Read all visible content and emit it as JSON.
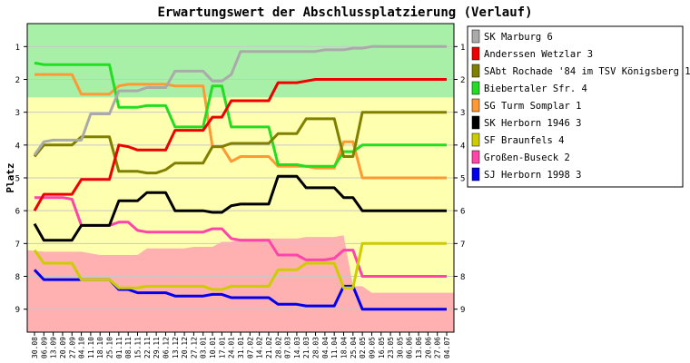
{
  "chart_data": {
    "type": "line",
    "title": "Erwartungswert der Abschlussplatzierung (Verlauf)",
    "ylabel": "Platz",
    "xlabel": "",
    "ylim": [
      0.3,
      9.7
    ],
    "y_ticks": [
      1,
      2,
      3,
      4,
      5,
      6,
      7,
      8,
      9
    ],
    "y_inverted": true,
    "grid": true,
    "legend_position": "right",
    "x": [
      "30.08",
      "06.09",
      "13.09",
      "20.09",
      "27.09",
      "04.10",
      "11.10",
      "18.10",
      "25.10",
      "01.11",
      "08.11",
      "15.11",
      "22.11",
      "29.11",
      "06.12",
      "13.12",
      "20.12",
      "27.12",
      "03.01",
      "10.01",
      "17.01",
      "24.01",
      "31.01",
      "07.02",
      "14.02",
      "21.02",
      "28.02",
      "07.03",
      "14.03",
      "21.03",
      "28.03",
      "04.04",
      "11.04",
      "18.04",
      "25.04",
      "02.05",
      "09.05",
      "16.05",
      "23.05",
      "30.05",
      "06.06",
      "13.06",
      "20.06",
      "27.06",
      "04.07"
    ],
    "bands": [
      {
        "name": "promotion",
        "color": "#a8f0a8",
        "lower": [
          2.55,
          2.55,
          2.55,
          2.55,
          2.55,
          2.55,
          2.55,
          2.55,
          2.55,
          2.55,
          2.55,
          2.55,
          2.55,
          2.55,
          2.55,
          2.55,
          2.55,
          2.55,
          2.55,
          2.55,
          2.55,
          2.55,
          2.55,
          2.55,
          2.55,
          2.55,
          2.55,
          2.55,
          2.55,
          2.55,
          2.55,
          2.55,
          2.55,
          2.55,
          2.55,
          2.55,
          2.55,
          2.55,
          2.55,
          2.55,
          2.55,
          2.55,
          2.55,
          2.55,
          2.55
        ]
      },
      {
        "name": "relegation",
        "color": "#ffb0b0",
        "upper": [
          7.2,
          7.25,
          7.25,
          7.25,
          7.25,
          7.25,
          7.3,
          7.35,
          7.35,
          7.35,
          7.35,
          7.35,
          7.15,
          7.15,
          7.15,
          7.15,
          7.15,
          7.1,
          7.1,
          7.1,
          6.95,
          6.95,
          6.85,
          6.85,
          6.85,
          6.85,
          6.85,
          6.85,
          6.85,
          6.8,
          6.8,
          6.8,
          6.8,
          6.75,
          8.3,
          8.3,
          8.5,
          8.5,
          8.5,
          8.5,
          8.5,
          8.5,
          8.5,
          8.5,
          8.5
        ]
      }
    ],
    "series": [
      {
        "name": "SK Marburg 6",
        "color": "#aaaaaa",
        "values": [
          4.3,
          3.9,
          3.85,
          3.85,
          3.85,
          3.85,
          3.05,
          3.05,
          3.05,
          2.35,
          2.35,
          2.35,
          2.25,
          2.25,
          2.25,
          1.75,
          1.75,
          1.75,
          1.75,
          2.05,
          2.05,
          1.85,
          1.15,
          1.15,
          1.15,
          1.15,
          1.15,
          1.15,
          1.15,
          1.15,
          1.15,
          1.1,
          1.1,
          1.1,
          1.05,
          1.05,
          1.0,
          1.0,
          1.0,
          1.0,
          1.0,
          1.0,
          1.0,
          1.0,
          1.0
        ]
      },
      {
        "name": "Anderssen Wetzlar 3",
        "color": "#ee0000",
        "values": [
          6.0,
          5.5,
          5.5,
          5.5,
          5.5,
          5.05,
          5.05,
          5.05,
          5.05,
          4.0,
          4.05,
          4.15,
          4.15,
          4.15,
          4.15,
          3.55,
          3.55,
          3.55,
          3.55,
          3.15,
          3.15,
          2.65,
          2.65,
          2.65,
          2.65,
          2.65,
          2.1,
          2.1,
          2.1,
          2.05,
          2.0,
          2.0,
          2.0,
          2.0,
          2.0,
          2.0,
          2.0,
          2.0,
          2.0,
          2.0,
          2.0,
          2.0,
          2.0,
          2.0,
          2.0
        ]
      },
      {
        "name": "SAbt Rochade '84 im TSV Königsberg 1",
        "color": "#808000",
        "values": [
          4.35,
          4.0,
          4.0,
          4.0,
          4.0,
          3.75,
          3.75,
          3.75,
          3.75,
          4.8,
          4.8,
          4.8,
          4.85,
          4.85,
          4.75,
          4.55,
          4.55,
          4.55,
          4.55,
          4.05,
          4.05,
          3.95,
          3.95,
          3.95,
          3.95,
          3.95,
          3.65,
          3.65,
          3.65,
          3.2,
          3.2,
          3.2,
          3.2,
          4.35,
          4.35,
          3.0,
          3.0,
          3.0,
          3.0,
          3.0,
          3.0,
          3.0,
          3.0,
          3.0,
          3.0
        ]
      },
      {
        "name": "Biebertaler Sfr. 4",
        "color": "#22dd22",
        "values": [
          1.5,
          1.55,
          1.55,
          1.55,
          1.55,
          1.55,
          1.55,
          1.55,
          1.55,
          2.85,
          2.85,
          2.85,
          2.8,
          2.8,
          2.8,
          3.45,
          3.45,
          3.45,
          3.45,
          2.2,
          2.2,
          3.45,
          3.45,
          3.45,
          3.45,
          3.45,
          4.6,
          4.6,
          4.6,
          4.65,
          4.65,
          4.65,
          4.65,
          4.2,
          4.2,
          4.0,
          4.0,
          4.0,
          4.0,
          4.0,
          4.0,
          4.0,
          4.0,
          4.0,
          4.0
        ]
      },
      {
        "name": "SG Turm Somplar 1",
        "color": "#ff9933",
        "values": [
          1.85,
          1.85,
          1.85,
          1.85,
          1.85,
          2.45,
          2.45,
          2.45,
          2.45,
          2.2,
          2.15,
          2.15,
          2.15,
          2.15,
          2.15,
          2.2,
          2.2,
          2.2,
          2.2,
          4.05,
          4.05,
          4.5,
          4.35,
          4.35,
          4.35,
          4.35,
          4.65,
          4.65,
          4.65,
          4.65,
          4.7,
          4.7,
          4.7,
          3.9,
          3.9,
          5.0,
          5.0,
          5.0,
          5.0,
          5.0,
          5.0,
          5.0,
          5.0,
          5.0,
          5.0
        ]
      },
      {
        "name": "SK Herborn 1946 3",
        "color": "#000000",
        "values": [
          6.4,
          6.9,
          6.9,
          6.9,
          6.9,
          6.45,
          6.45,
          6.45,
          6.45,
          5.7,
          5.7,
          5.7,
          5.45,
          5.45,
          5.45,
          6.0,
          6.0,
          6.0,
          6.0,
          6.05,
          6.05,
          5.85,
          5.8,
          5.8,
          5.8,
          5.8,
          4.95,
          4.95,
          4.95,
          5.3,
          5.3,
          5.3,
          5.3,
          5.6,
          5.6,
          6.0,
          6.0,
          6.0,
          6.0,
          6.0,
          6.0,
          6.0,
          6.0,
          6.0,
          6.0
        ]
      },
      {
        "name": "SF Braunfels 4",
        "color": "#cccc00",
        "values": [
          7.2,
          7.6,
          7.6,
          7.6,
          7.6,
          8.1,
          8.1,
          8.1,
          8.1,
          8.35,
          8.35,
          8.35,
          8.3,
          8.3,
          8.3,
          8.3,
          8.3,
          8.3,
          8.3,
          8.4,
          8.4,
          8.3,
          8.3,
          8.3,
          8.3,
          8.3,
          7.8,
          7.8,
          7.8,
          7.6,
          7.6,
          7.6,
          7.6,
          8.35,
          8.35,
          7.0,
          7.0,
          7.0,
          7.0,
          7.0,
          7.0,
          7.0,
          7.0,
          7.0,
          7.0
        ]
      },
      {
        "name": "Großen-Buseck 2",
        "color": "#ff44aa",
        "values": [
          5.6,
          5.6,
          5.6,
          5.6,
          5.65,
          6.45,
          6.45,
          6.45,
          6.45,
          6.35,
          6.35,
          6.6,
          6.65,
          6.65,
          6.65,
          6.65,
          6.65,
          6.65,
          6.65,
          6.55,
          6.55,
          6.85,
          6.9,
          6.9,
          6.9,
          6.9,
          7.35,
          7.35,
          7.35,
          7.5,
          7.5,
          7.5,
          7.45,
          7.2,
          7.2,
          8.0,
          8.0,
          8.0,
          8.0,
          8.0,
          8.0,
          8.0,
          8.0,
          8.0,
          8.0
        ]
      },
      {
        "name": "SJ Herborn 1998 3",
        "color": "#0000ee",
        "values": [
          7.8,
          8.1,
          8.1,
          8.1,
          8.1,
          8.1,
          8.1,
          8.1,
          8.1,
          8.4,
          8.4,
          8.5,
          8.5,
          8.5,
          8.5,
          8.6,
          8.6,
          8.6,
          8.6,
          8.55,
          8.55,
          8.65,
          8.65,
          8.65,
          8.65,
          8.65,
          8.85,
          8.85,
          8.85,
          8.9,
          8.9,
          8.9,
          8.9,
          8.3,
          8.3,
          9.0,
          9.0,
          9.0,
          9.0,
          9.0,
          9.0,
          9.0,
          9.0,
          9.0,
          9.0
        ]
      }
    ]
  }
}
